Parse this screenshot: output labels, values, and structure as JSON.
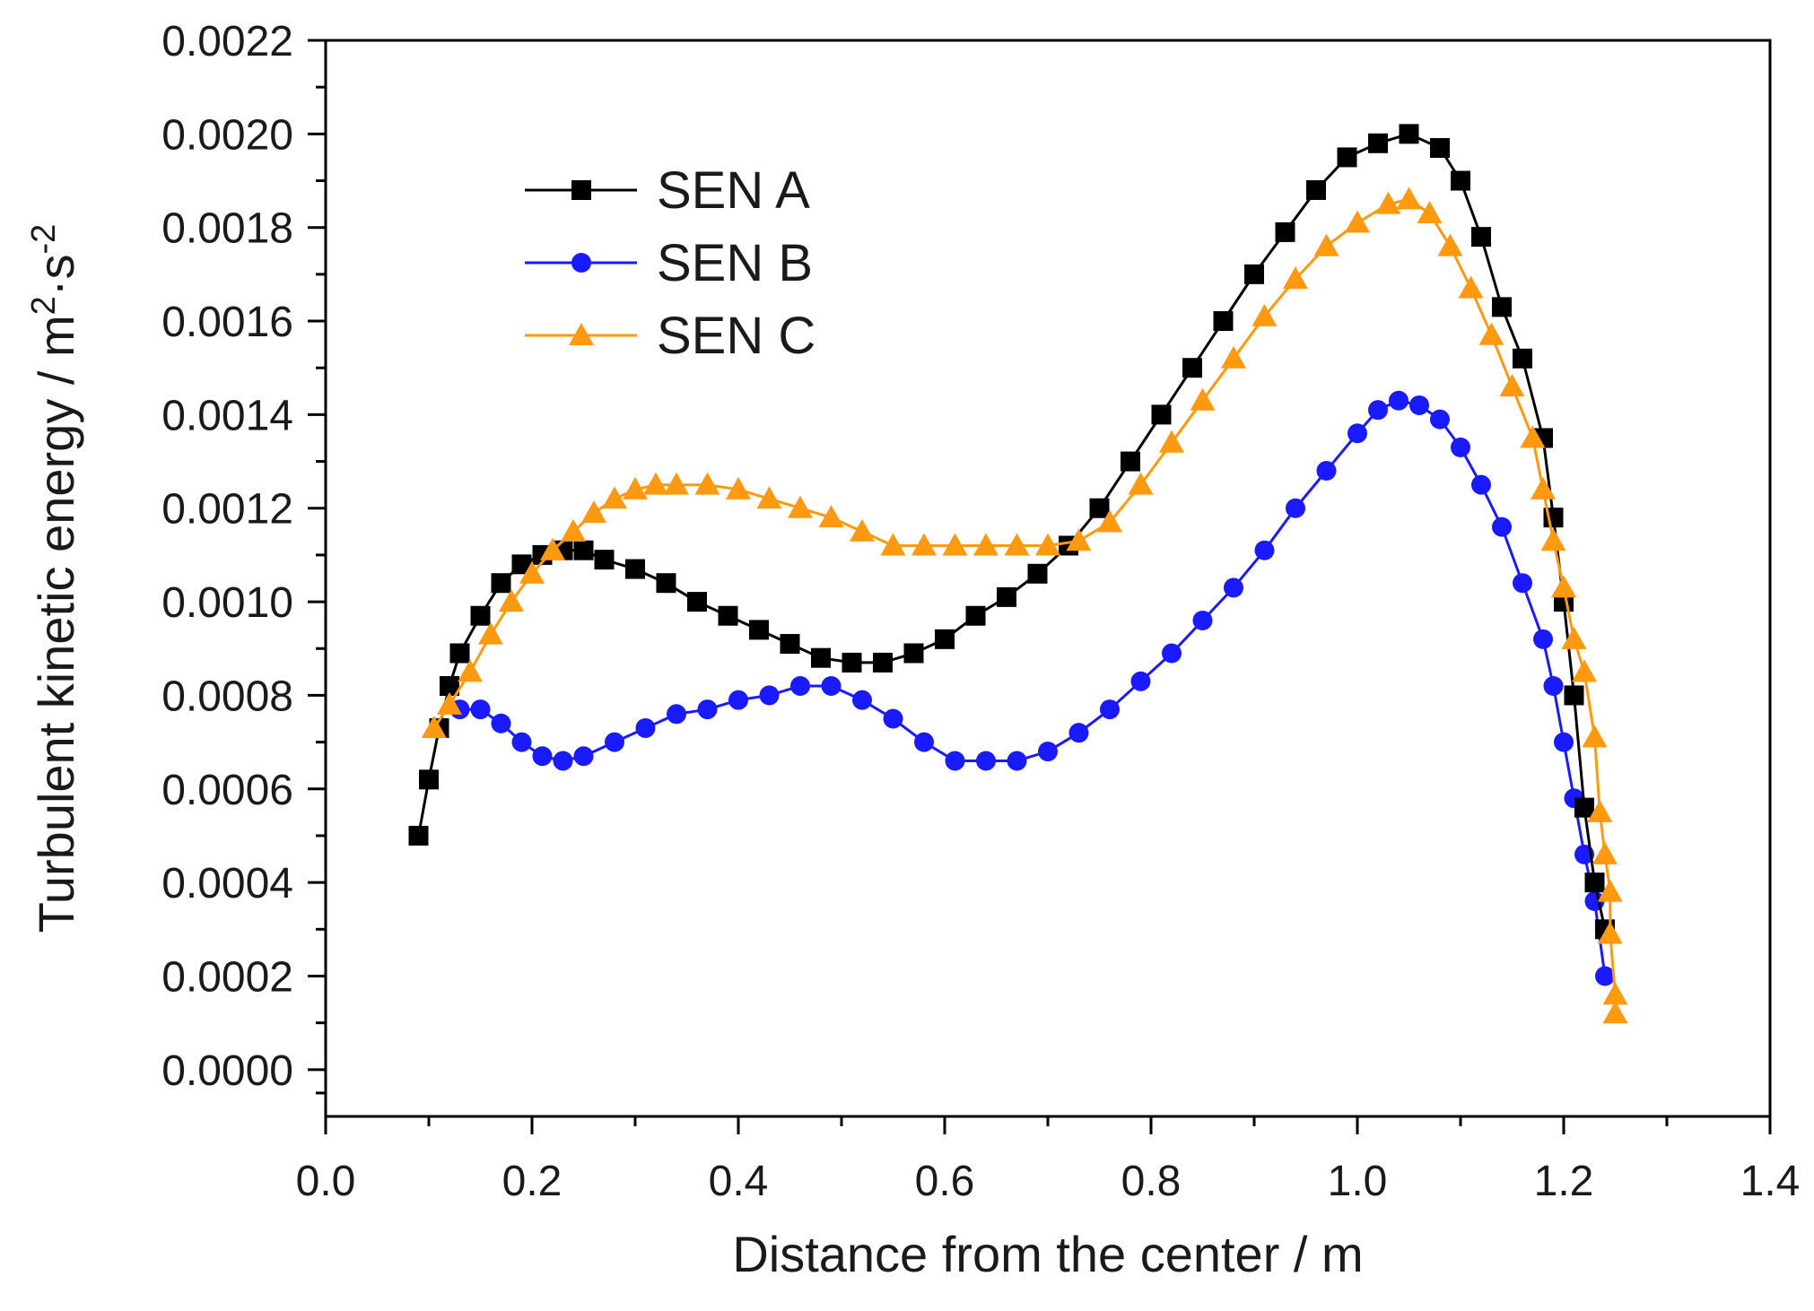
{
  "chart_data": {
    "type": "line",
    "title": "",
    "xlabel": "Distance from the center / m",
    "ylabel": "Turbulent kinetic energy / m",
    "ylabel_sup1": "2",
    "ylabel_mid": "·s",
    "ylabel_sup2": "-2",
    "xlim": [
      0.0,
      1.4
    ],
    "ylim": [
      -0.0001,
      0.0022
    ],
    "x_ticks": [
      0.0,
      0.2,
      0.4,
      0.6,
      0.8,
      1.0,
      1.2,
      1.4
    ],
    "x_tick_labels": [
      "0.0",
      "0.2",
      "0.4",
      "0.6",
      "0.8",
      "1.0",
      "1.2",
      "1.4"
    ],
    "y_ticks": [
      0.0,
      0.0002,
      0.0004,
      0.0006,
      0.0008,
      0.001,
      0.0012,
      0.0014,
      0.0016,
      0.0018,
      0.002,
      0.0022
    ],
    "y_tick_labels": [
      "0.0000",
      "0.0002",
      "0.0004",
      "0.0006",
      "0.0008",
      "0.0010",
      "0.0012",
      "0.0014",
      "0.0016",
      "0.0018",
      "0.0020",
      "0.0022"
    ],
    "legend_position": "top-left",
    "series": [
      {
        "name": "SEN A",
        "label": "SEN A",
        "color": "#000000",
        "marker": "square",
        "points": [
          [
            0.09,
            0.0005
          ],
          [
            0.1,
            0.00062
          ],
          [
            0.11,
            0.00073
          ],
          [
            0.12,
            0.00082
          ],
          [
            0.13,
            0.00089
          ],
          [
            0.15,
            0.00097
          ],
          [
            0.17,
            0.00104
          ],
          [
            0.19,
            0.00108
          ],
          [
            0.21,
            0.0011
          ],
          [
            0.23,
            0.00111
          ],
          [
            0.25,
            0.00111
          ],
          [
            0.27,
            0.00109
          ],
          [
            0.3,
            0.00107
          ],
          [
            0.33,
            0.00104
          ],
          [
            0.36,
            0.001
          ],
          [
            0.39,
            0.00097
          ],
          [
            0.42,
            0.00094
          ],
          [
            0.45,
            0.00091
          ],
          [
            0.48,
            0.00088
          ],
          [
            0.51,
            0.00087
          ],
          [
            0.54,
            0.00087
          ],
          [
            0.57,
            0.00089
          ],
          [
            0.6,
            0.00092
          ],
          [
            0.63,
            0.00097
          ],
          [
            0.66,
            0.00101
          ],
          [
            0.69,
            0.00106
          ],
          [
            0.72,
            0.00112
          ],
          [
            0.75,
            0.0012
          ],
          [
            0.78,
            0.0013
          ],
          [
            0.81,
            0.0014
          ],
          [
            0.84,
            0.0015
          ],
          [
            0.87,
            0.0016
          ],
          [
            0.9,
            0.0017
          ],
          [
            0.93,
            0.00179
          ],
          [
            0.96,
            0.00188
          ],
          [
            0.99,
            0.00195
          ],
          [
            1.02,
            0.00198
          ],
          [
            1.05,
            0.002
          ],
          [
            1.08,
            0.00197
          ],
          [
            1.1,
            0.0019
          ],
          [
            1.12,
            0.00178
          ],
          [
            1.14,
            0.00163
          ],
          [
            1.16,
            0.00152
          ],
          [
            1.18,
            0.00135
          ],
          [
            1.19,
            0.00118
          ],
          [
            1.2,
            0.001
          ],
          [
            1.21,
            0.0008
          ],
          [
            1.22,
            0.00056
          ],
          [
            1.23,
            0.0004
          ],
          [
            1.24,
            0.0003
          ]
        ]
      },
      {
        "name": "SEN B",
        "label": "SEN B",
        "color": "#1a1aff",
        "marker": "circle",
        "points": [
          [
            0.13,
            0.00077
          ],
          [
            0.15,
            0.00077
          ],
          [
            0.17,
            0.00074
          ],
          [
            0.19,
            0.0007
          ],
          [
            0.21,
            0.00067
          ],
          [
            0.23,
            0.00066
          ],
          [
            0.25,
            0.00067
          ],
          [
            0.28,
            0.0007
          ],
          [
            0.31,
            0.00073
          ],
          [
            0.34,
            0.00076
          ],
          [
            0.37,
            0.00077
          ],
          [
            0.4,
            0.00079
          ],
          [
            0.43,
            0.0008
          ],
          [
            0.46,
            0.00082
          ],
          [
            0.49,
            0.00082
          ],
          [
            0.52,
            0.00079
          ],
          [
            0.55,
            0.00075
          ],
          [
            0.58,
            0.0007
          ],
          [
            0.61,
            0.00066
          ],
          [
            0.64,
            0.00066
          ],
          [
            0.67,
            0.00066
          ],
          [
            0.7,
            0.00068
          ],
          [
            0.73,
            0.00072
          ],
          [
            0.76,
            0.00077
          ],
          [
            0.79,
            0.00083
          ],
          [
            0.82,
            0.00089
          ],
          [
            0.85,
            0.00096
          ],
          [
            0.88,
            0.00103
          ],
          [
            0.91,
            0.00111
          ],
          [
            0.94,
            0.0012
          ],
          [
            0.97,
            0.00128
          ],
          [
            1.0,
            0.00136
          ],
          [
            1.02,
            0.00141
          ],
          [
            1.04,
            0.00143
          ],
          [
            1.06,
            0.00142
          ],
          [
            1.08,
            0.00139
          ],
          [
            1.1,
            0.00133
          ],
          [
            1.12,
            0.00125
          ],
          [
            1.14,
            0.00116
          ],
          [
            1.16,
            0.00104
          ],
          [
            1.18,
            0.00092
          ],
          [
            1.19,
            0.00082
          ],
          [
            1.2,
            0.0007
          ],
          [
            1.21,
            0.00058
          ],
          [
            1.22,
            0.00046
          ],
          [
            1.23,
            0.00036
          ],
          [
            1.24,
            0.0002
          ]
        ]
      },
      {
        "name": "SEN C",
        "label": "SEN C",
        "color": "#ff9910",
        "marker": "triangle",
        "points": [
          [
            0.105,
            0.00073
          ],
          [
            0.12,
            0.00078
          ],
          [
            0.14,
            0.00085
          ],
          [
            0.16,
            0.00093
          ],
          [
            0.18,
            0.001
          ],
          [
            0.2,
            0.00106
          ],
          [
            0.22,
            0.00111
          ],
          [
            0.24,
            0.00115
          ],
          [
            0.26,
            0.00119
          ],
          [
            0.28,
            0.00122
          ],
          [
            0.3,
            0.00124
          ],
          [
            0.32,
            0.00125
          ],
          [
            0.34,
            0.00125
          ],
          [
            0.37,
            0.00125
          ],
          [
            0.4,
            0.00124
          ],
          [
            0.43,
            0.00122
          ],
          [
            0.46,
            0.0012
          ],
          [
            0.49,
            0.00118
          ],
          [
            0.52,
            0.00115
          ],
          [
            0.55,
            0.00112
          ],
          [
            0.58,
            0.00112
          ],
          [
            0.61,
            0.00112
          ],
          [
            0.64,
            0.00112
          ],
          [
            0.67,
            0.00112
          ],
          [
            0.7,
            0.00112
          ],
          [
            0.73,
            0.00113
          ],
          [
            0.76,
            0.00117
          ],
          [
            0.79,
            0.00125
          ],
          [
            0.82,
            0.00134
          ],
          [
            0.85,
            0.00143
          ],
          [
            0.88,
            0.00152
          ],
          [
            0.91,
            0.00161
          ],
          [
            0.94,
            0.00169
          ],
          [
            0.97,
            0.00176
          ],
          [
            1.0,
            0.00181
          ],
          [
            1.03,
            0.00185
          ],
          [
            1.05,
            0.00186
          ],
          [
            1.07,
            0.00183
          ],
          [
            1.09,
            0.00176
          ],
          [
            1.11,
            0.00167
          ],
          [
            1.13,
            0.00157
          ],
          [
            1.15,
            0.00146
          ],
          [
            1.17,
            0.00135
          ],
          [
            1.18,
            0.00124
          ],
          [
            1.19,
            0.00113
          ],
          [
            1.2,
            0.00103
          ],
          [
            1.21,
            0.00092
          ],
          [
            1.22,
            0.00085
          ],
          [
            1.23,
            0.00071
          ],
          [
            1.235,
            0.00055
          ],
          [
            1.24,
            0.00046
          ],
          [
            1.245,
            0.00038
          ],
          [
            1.245,
            0.00029
          ],
          [
            1.25,
            0.00016
          ],
          [
            1.25,
            0.00012
          ]
        ]
      }
    ]
  }
}
